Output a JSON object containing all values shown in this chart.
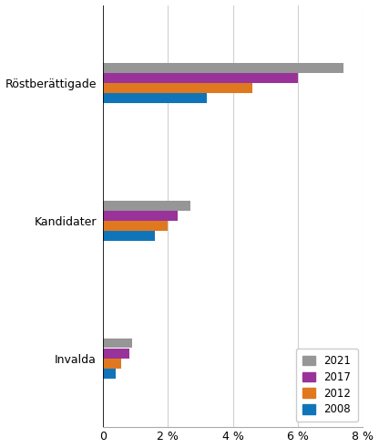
{
  "categories": [
    "Röstberättigade",
    "Kandidater",
    "Invalda"
  ],
  "years": [
    "2021",
    "2017",
    "2012",
    "2008"
  ],
  "colors": {
    "2021": "#969696",
    "2017": "#993399",
    "2012": "#E07820",
    "2008": "#1075B8"
  },
  "values": {
    "Röstberättigade": {
      "2021": 7.4,
      "2017": 6.0,
      "2012": 4.6,
      "2008": 3.2
    },
    "Kandidater": {
      "2021": 2.7,
      "2017": 2.3,
      "2012": 2.0,
      "2008": 1.6
    },
    "Invalda": {
      "2021": 0.9,
      "2017": 0.8,
      "2012": 0.55,
      "2008": 0.4
    }
  },
  "xlim": [
    0,
    8
  ],
  "xticks": [
    0,
    2,
    4,
    6,
    8
  ],
  "xticklabels": [
    "0",
    "2 %",
    "4 %",
    "6 %",
    "8 %"
  ],
  "background_color": "#ffffff",
  "grid_color": "#d0d0d0"
}
